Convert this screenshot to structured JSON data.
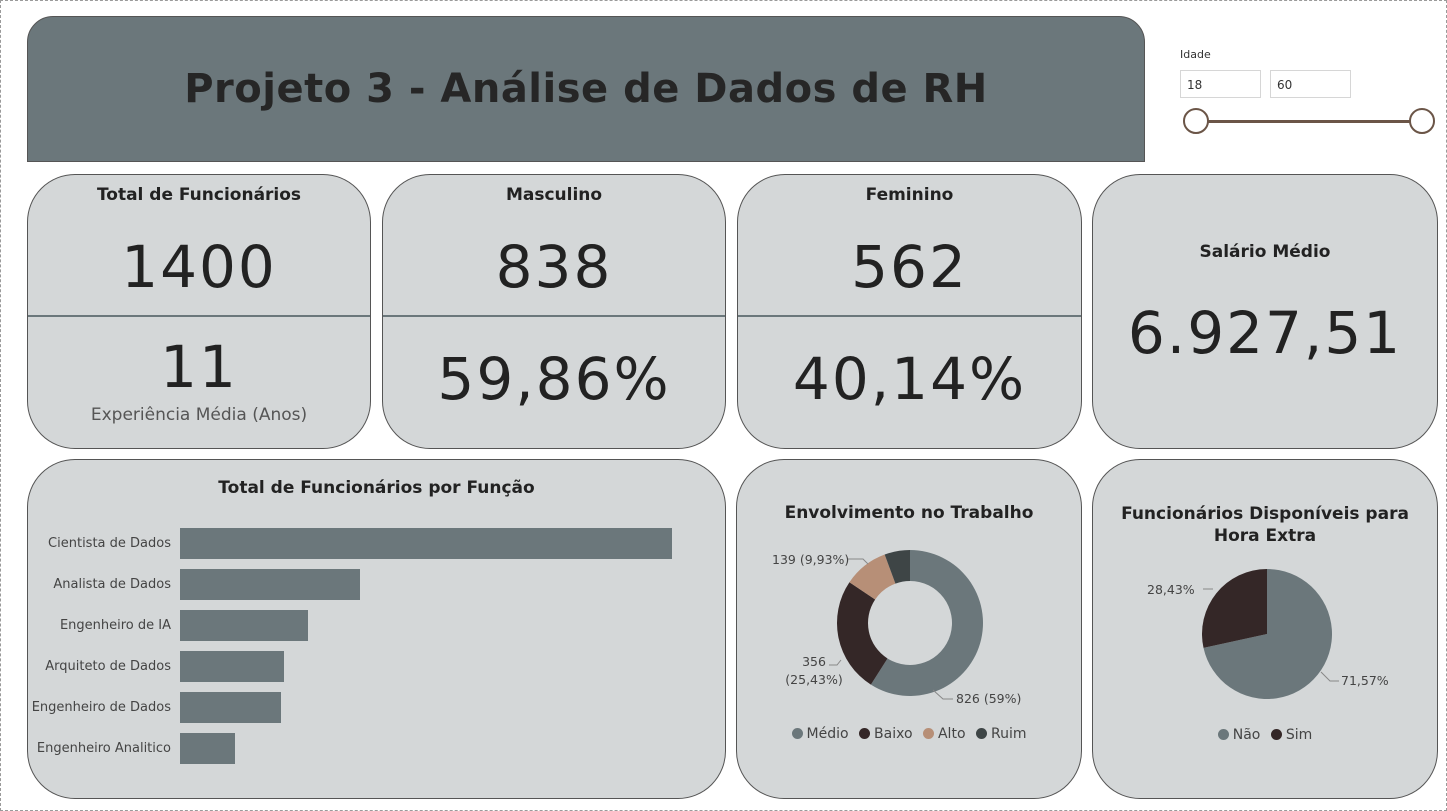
{
  "header": {
    "title": "Projeto 3 - Análise de Dados de RH"
  },
  "age_slicer": {
    "label": "Idade",
    "min_value": "18",
    "max_value": "60"
  },
  "kpi_total": {
    "title": "Total de Funcionários",
    "value": "1400",
    "secondary_value": "11",
    "secondary_label": "Experiência Média (Anos)"
  },
  "kpi_male": {
    "title": "Masculino",
    "value": "838",
    "percent": "59,86%"
  },
  "kpi_female": {
    "title": "Feminino",
    "value": "562",
    "percent": "40,14%"
  },
  "kpi_salary": {
    "title": "Salário Médio",
    "value": "6.927,51"
  },
  "colors": {
    "header": "#6b777b",
    "card": "#d4d7d8",
    "medio": "#6b777b",
    "baixo": "#342727",
    "alto": "#b78f77",
    "ruim": "#3e4546",
    "slider": "#6b5547"
  },
  "chart_data": [
    {
      "type": "bar",
      "orientation": "horizontal",
      "title": "Total de Funcionários por Função",
      "categories": [
        "Cientista de Dados",
        "Analista de Dados",
        "Engenheiro de IA",
        "Arquiteto de Dados",
        "Engenheiro de Dados",
        "Engenheiro Analitico"
      ],
      "values": [
        561,
        205,
        146,
        119,
        115,
        63
      ],
      "xlim": [
        0,
        561
      ],
      "grid": false,
      "legend": "none"
    },
    {
      "type": "pie",
      "donut": true,
      "title": "Envolvimento no Trabalho",
      "slices": [
        {
          "name": "Médio",
          "value": 826,
          "percent": 59.0,
          "label": "826 (59%)"
        },
        {
          "name": "Baixo",
          "value": 356,
          "percent": 25.43,
          "label": "356 (25,43%)"
        },
        {
          "name": "Alto",
          "value": 139,
          "percent": 9.93,
          "label": "139 (9,93%)"
        },
        {
          "name": "Ruim",
          "value": 79,
          "percent": 5.64,
          "label": ""
        }
      ],
      "legend": "bottom"
    },
    {
      "type": "pie",
      "donut": false,
      "title": "Funcionários Disponíveis para Hora Extra",
      "slices": [
        {
          "name": "Não",
          "percent": 71.57,
          "label": "71,57%"
        },
        {
          "name": "Sim",
          "percent": 28.43,
          "label": "28,43%"
        }
      ],
      "legend": "bottom"
    }
  ]
}
